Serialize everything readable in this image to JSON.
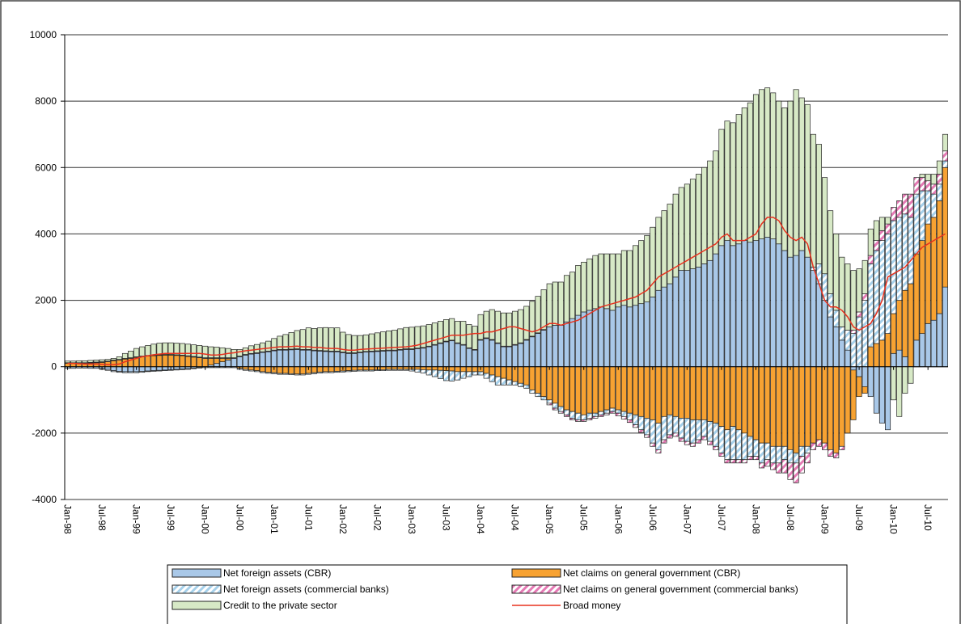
{
  "chart_data": {
    "type": "bar",
    "stacked": true,
    "categories": [
      "Jan-98",
      null,
      null,
      null,
      null,
      null,
      "Jul-98",
      null,
      null,
      null,
      null,
      null,
      "Jan-99",
      null,
      null,
      null,
      null,
      null,
      "Jul-99",
      null,
      null,
      null,
      null,
      null,
      "Jan-00",
      null,
      null,
      null,
      null,
      null,
      "Jul-00",
      null,
      null,
      null,
      null,
      null,
      "Jan-01",
      null,
      null,
      null,
      null,
      null,
      "Jul-01",
      null,
      null,
      null,
      null,
      null,
      "Jan-02",
      null,
      null,
      null,
      null,
      null,
      "Jul-02",
      null,
      null,
      null,
      null,
      null,
      "Jan-03",
      null,
      null,
      null,
      null,
      null,
      "Jul-03",
      null,
      null,
      null,
      null,
      null,
      "Jan-04",
      null,
      null,
      null,
      null,
      null,
      "Jul-04",
      null,
      null,
      null,
      null,
      null,
      "Jan-05",
      null,
      null,
      null,
      null,
      null,
      "Jul-05",
      null,
      null,
      null,
      null,
      null,
      "Jan-06",
      null,
      null,
      null,
      null,
      null,
      "Jul-06",
      null,
      null,
      null,
      null,
      null,
      "Jan-07",
      null,
      null,
      null,
      null,
      null,
      "Jul-07",
      null,
      null,
      null,
      null,
      null,
      "Jan-08",
      null,
      null,
      null,
      null,
      null,
      "Jul-08",
      null,
      null,
      null,
      null,
      null,
      "Jan-09",
      null,
      null,
      null,
      null,
      null,
      "Jul-09",
      null,
      null,
      null,
      null,
      null,
      "Jan-10",
      null,
      null,
      null,
      null,
      null,
      "Jul-10",
      null,
      null,
      null
    ],
    "series": [
      {
        "name": "Net foreign assets (CBR)",
        "color": "#a9c8e8",
        "pattern": "solid",
        "values": [
          -50,
          -50,
          -40,
          -40,
          -50,
          -50,
          -60,
          -80,
          -120,
          -140,
          -150,
          -150,
          -150,
          -140,
          -130,
          -120,
          -110,
          -100,
          -90,
          -80,
          -70,
          -60,
          -40,
          -20,
          0,
          50,
          100,
          150,
          200,
          250,
          300,
          350,
          380,
          400,
          430,
          450,
          480,
          500,
          500,
          510,
          520,
          500,
          500,
          480,
          470,
          460,
          450,
          450,
          420,
          400,
          400,
          420,
          440,
          450,
          460,
          470,
          480,
          480,
          500,
          520,
          520,
          540,
          560,
          600,
          650,
          700,
          750,
          780,
          700,
          650,
          550,
          500,
          800,
          850,
          800,
          700,
          600,
          600,
          650,
          700,
          800,
          900,
          1000,
          1100,
          1200,
          1250,
          1250,
          1350,
          1450,
          1550,
          1650,
          1700,
          1750,
          1800,
          1750,
          1700,
          1800,
          1850,
          1800,
          1850,
          1900,
          1950,
          2100,
          2300,
          2400,
          2500,
          2700,
          2900,
          2900,
          2950,
          3000,
          3100,
          3200,
          3400,
          3650,
          3800,
          3650,
          3700,
          3800,
          3750,
          3800,
          3850,
          3900,
          3850,
          3700,
          3500,
          3300,
          3350,
          3500,
          3300,
          2900,
          2500,
          2000,
          1500,
          1200,
          800,
          500,
          -100,
          -300,
          -600,
          -900,
          -1400,
          -1700,
          -1900,
          400,
          500,
          300,
          0,
          800,
          1000,
          1300,
          1400,
          1600,
          2400
        ]
      },
      {
        "name": "Net claims on general government (CBR)",
        "color": "#f7a232",
        "pattern": "solid",
        "values": [
          100,
          100,
          100,
          100,
          110,
          120,
          130,
          150,
          180,
          200,
          230,
          250,
          280,
          300,
          320,
          330,
          340,
          350,
          350,
          340,
          330,
          310,
          290,
          270,
          250,
          200,
          150,
          100,
          50,
          0,
          -50,
          -80,
          -100,
          -120,
          -150,
          -170,
          -180,
          -200,
          -200,
          -210,
          -220,
          -220,
          -200,
          -180,
          -160,
          -150,
          -150,
          -140,
          -130,
          -120,
          -110,
          -100,
          -100,
          -100,
          -90,
          -90,
          -80,
          -80,
          -80,
          -80,
          -80,
          -80,
          -90,
          -100,
          -100,
          -110,
          -120,
          -130,
          -150,
          -150,
          -150,
          -150,
          -150,
          -200,
          -250,
          -300,
          -350,
          -400,
          -450,
          -500,
          -550,
          -700,
          -800,
          -900,
          -1000,
          -1100,
          -1200,
          -1300,
          -1350,
          -1400,
          -1450,
          -1400,
          -1400,
          -1350,
          -1300,
          -1250,
          -1300,
          -1350,
          -1400,
          -1450,
          -1500,
          -1550,
          -1600,
          -1700,
          -1500,
          -1450,
          -1500,
          -1550,
          -1550,
          -1600,
          -1600,
          -1600,
          -1650,
          -1700,
          -1800,
          -1900,
          -1800,
          -1900,
          -2000,
          -2100,
          -2200,
          -2300,
          -2300,
          -2400,
          -2400,
          -2400,
          -2500,
          -2600,
          -2400,
          -2400,
          -2300,
          -2200,
          -2300,
          -2500,
          -2600,
          -2400,
          -2000,
          -1500,
          -600,
          -200,
          600,
          700,
          800,
          1000,
          1200,
          1500,
          2000,
          2500,
          2600,
          2800,
          3000,
          3100,
          3400,
          3600
        ]
      },
      {
        "name": "Net foreign assets (commercial banks)",
        "color": "#a6d0ea",
        "pattern": "hatch",
        "values": [
          0,
          0,
          0,
          0,
          0,
          0,
          -20,
          -30,
          -30,
          -30,
          -30,
          -30,
          -30,
          -30,
          -20,
          -20,
          -20,
          -20,
          -20,
          -20,
          -20,
          -20,
          -20,
          -20,
          -30,
          -30,
          -30,
          -30,
          -30,
          -30,
          -30,
          -30,
          -30,
          -30,
          -30,
          -30,
          -30,
          -30,
          -30,
          -30,
          -30,
          -30,
          -30,
          -30,
          -30,
          -30,
          -30,
          -30,
          -30,
          -30,
          -30,
          -30,
          -30,
          -30,
          -30,
          -30,
          -30,
          -30,
          -30,
          -30,
          -50,
          -80,
          -100,
          -150,
          -200,
          -250,
          -300,
          -300,
          -250,
          -200,
          -150,
          -100,
          -100,
          -150,
          -200,
          -250,
          -200,
          -150,
          -100,
          -100,
          -100,
          -100,
          -100,
          -100,
          -100,
          -150,
          -150,
          -150,
          -200,
          -200,
          -150,
          -150,
          -100,
          -100,
          -100,
          -100,
          -100,
          -150,
          -200,
          -300,
          -400,
          -500,
          -700,
          -800,
          -700,
          -600,
          -500,
          -600,
          -700,
          -700,
          -600,
          -500,
          -600,
          -700,
          -800,
          -900,
          -1000,
          -900,
          -800,
          -600,
          -500,
          -600,
          -500,
          -500,
          -500,
          -400,
          -400,
          -300,
          -300,
          -200,
          100,
          600,
          800,
          700,
          500,
          400,
          600,
          1000,
          1500,
          2000,
          2500,
          2800,
          3000,
          3000,
          2800,
          2500,
          2300,
          2000,
          1800,
          1500,
          1000,
          700,
          500,
          200
        ]
      },
      {
        "name": "Net claims on general government (commercial banks)",
        "color": "#e47ab4",
        "pattern": "hatch",
        "values": [
          20,
          20,
          20,
          20,
          20,
          20,
          20,
          20,
          20,
          20,
          20,
          20,
          20,
          20,
          20,
          20,
          20,
          20,
          20,
          20,
          20,
          20,
          20,
          20,
          20,
          20,
          20,
          20,
          20,
          20,
          20,
          20,
          20,
          20,
          20,
          20,
          20,
          20,
          20,
          20,
          20,
          20,
          20,
          20,
          20,
          20,
          20,
          20,
          20,
          20,
          20,
          20,
          20,
          20,
          20,
          20,
          20,
          20,
          20,
          20,
          20,
          20,
          20,
          20,
          20,
          20,
          20,
          20,
          20,
          20,
          20,
          20,
          20,
          20,
          20,
          20,
          20,
          20,
          20,
          20,
          20,
          20,
          20,
          20,
          -50,
          -50,
          -50,
          -50,
          -50,
          -50,
          -50,
          -50,
          -50,
          -50,
          -50,
          -50,
          -80,
          -80,
          -80,
          -80,
          -80,
          -80,
          -100,
          -100,
          -100,
          -100,
          -100,
          -100,
          -100,
          -100,
          -100,
          -100,
          -100,
          -100,
          -100,
          -100,
          -100,
          -100,
          -100,
          -100,
          -100,
          -150,
          -200,
          -200,
          -300,
          -400,
          -500,
          -600,
          -500,
          -300,
          -200,
          -200,
          -200,
          -200,
          -150,
          -100,
          0,
          100,
          150,
          200,
          250,
          300,
          300,
          300,
          400,
          500,
          600,
          700,
          500,
          400,
          300,
          300,
          300,
          300
        ]
      },
      {
        "name": "Credit to the private sector",
        "color": "#d7e9c6",
        "pattern": "solid",
        "values": [
          50,
          50,
          60,
          60,
          60,
          60,
          60,
          50,
          50,
          80,
          150,
          200,
          250,
          280,
          300,
          330,
          350,
          350,
          350,
          350,
          350,
          350,
          350,
          350,
          350,
          330,
          320,
          300,
          280,
          250,
          200,
          200,
          230,
          250,
          270,
          300,
          350,
          400,
          450,
          500,
          550,
          600,
          650,
          650,
          680,
          700,
          700,
          700,
          600,
          550,
          520,
          500,
          500,
          520,
          540,
          560,
          580,
          600,
          620,
          640,
          650,
          650,
          650,
          650,
          650,
          650,
          650,
          650,
          650,
          700,
          700,
          700,
          750,
          800,
          900,
          950,
          1000,
          1000,
          1000,
          1000,
          1000,
          1050,
          1100,
          1200,
          1300,
          1300,
          1300,
          1400,
          1400,
          1500,
          1500,
          1550,
          1600,
          1600,
          1650,
          1700,
          1600,
          1650,
          1700,
          1800,
          1900,
          2000,
          2100,
          2200,
          2300,
          2400,
          2500,
          2500,
          2600,
          2700,
          2800,
          2900,
          3000,
          3100,
          3500,
          3600,
          3700,
          3900,
          4000,
          4200,
          4400,
          4500,
          4500,
          4400,
          4300,
          4300,
          4700,
          5000,
          4600,
          4600,
          4000,
          3600,
          2900,
          2500,
          2300,
          2100,
          2000,
          1800,
          1300,
          1000,
          800,
          600,
          400,
          200,
          -1000,
          -1500,
          -800,
          -500,
          0,
          100,
          200,
          300,
          400,
          500
        ]
      }
    ],
    "line_series": {
      "name": "Broad money",
      "color": "#e8321f",
      "values": [
        100,
        100,
        90,
        80,
        80,
        80,
        70,
        60,
        60,
        80,
        150,
        200,
        250,
        300,
        330,
        360,
        380,
        400,
        400,
        400,
        400,
        400,
        400,
        400,
        380,
        350,
        350,
        370,
        400,
        420,
        450,
        480,
        500,
        520,
        540,
        560,
        580,
        600,
        600,
        610,
        620,
        600,
        600,
        580,
        580,
        560,
        550,
        550,
        520,
        500,
        500,
        520,
        530,
        540,
        550,
        560,
        570,
        580,
        590,
        600,
        620,
        650,
        700,
        750,
        800,
        850,
        900,
        950,
        950,
        950,
        980,
        1000,
        1000,
        1050,
        1050,
        1100,
        1150,
        1200,
        1200,
        1150,
        1100,
        1050,
        1100,
        1200,
        1300,
        1300,
        1250,
        1300,
        1350,
        1400,
        1500,
        1600,
        1700,
        1800,
        1850,
        1900,
        1950,
        2000,
        2050,
        2100,
        2200,
        2300,
        2500,
        2700,
        2800,
        2900,
        3000,
        3100,
        3200,
        3300,
        3400,
        3500,
        3600,
        3700,
        3900,
        4000,
        3800,
        3800,
        3800,
        3900,
        4000,
        4300,
        4500,
        4500,
        4400,
        4100,
        3900,
        3800,
        3900,
        3700,
        3000,
        2500,
        2000,
        1800,
        1800,
        1700,
        1500,
        1200,
        1100,
        1200,
        1300,
        1600,
        2000,
        2700,
        2800,
        2900,
        3000,
        3200,
        3400,
        3600,
        3700,
        3800,
        3900,
        4000
      ]
    },
    "ylim": [
      -4000,
      10000
    ],
    "yticks": [
      -4000,
      -2000,
      0,
      2000,
      4000,
      6000,
      8000,
      10000
    ],
    "grid": true,
    "legend": "bottom"
  }
}
